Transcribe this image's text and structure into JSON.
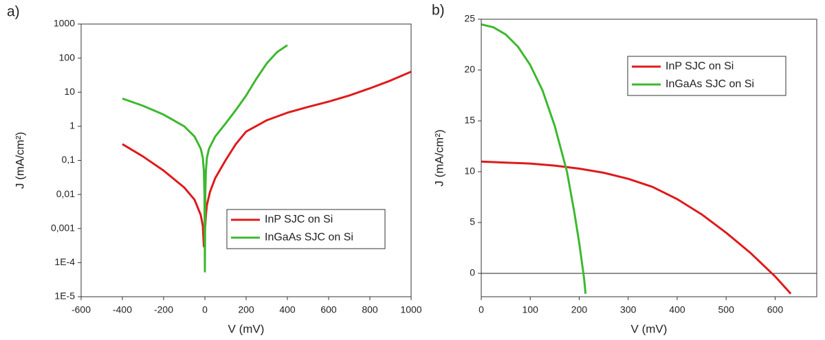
{
  "chart_data": [
    {
      "type": "line",
      "panel_label": "a)",
      "xlabel": "V (mV)",
      "ylabel": "J (mA/cm²)",
      "yscale": "log",
      "legend": "lower right",
      "xlim": [
        -600,
        1000
      ],
      "xticks": [
        -600,
        -400,
        -200,
        0,
        200,
        400,
        600,
        800,
        1000
      ],
      "ylim": [
        1e-05,
        1000
      ],
      "yticks": [
        {
          "value": 1e-05,
          "label": "1E-5"
        },
        {
          "value": 0.0001,
          "label": "1E-4"
        },
        {
          "value": 0.001,
          "label": "0,001"
        },
        {
          "value": 0.01,
          "label": "0,01"
        },
        {
          "value": 0.1,
          "label": "0,1"
        },
        1,
        10,
        100,
        1000
      ],
      "series": [
        {
          "name": "InP SJC on Si",
          "color": "#e0191b",
          "x": [
            -400,
            -300,
            -200,
            -100,
            -50,
            -20,
            -10,
            -5,
            0,
            5,
            10,
            25,
            50,
            100,
            150,
            200,
            300,
            400,
            500,
            600,
            700,
            800,
            900,
            1000
          ],
          "values": [
            0.3,
            0.13,
            0.05,
            0.016,
            0.007,
            0.0025,
            0.0012,
            0.0003,
            0.0008,
            0.0025,
            0.005,
            0.012,
            0.03,
            0.1,
            0.3,
            0.7,
            1.5,
            2.5,
            3.7,
            5.3,
            8,
            13,
            22,
            40
          ]
        },
        {
          "name": "InGaAs SJC on Si",
          "color": "#3cb82e",
          "x": [
            -400,
            -300,
            -200,
            -100,
            -50,
            -20,
            -10,
            -5,
            -2,
            0,
            2,
            5,
            10,
            20,
            50,
            100,
            150,
            200,
            250,
            300,
            350,
            400
          ],
          "values": [
            6.5,
            4,
            2.2,
            1,
            0.5,
            0.22,
            0.12,
            0.05,
            0.01,
            5.5e-05,
            0.01,
            0.05,
            0.12,
            0.22,
            0.5,
            1.2,
            3,
            8,
            25,
            70,
            150,
            240
          ]
        }
      ]
    },
    {
      "type": "line",
      "panel_label": "b)",
      "xlabel": "V (mV)",
      "ylabel": "J (mA/cm²)",
      "yscale": "linear",
      "legend": "upper right",
      "zero_line": true,
      "xlim": [
        0,
        685
      ],
      "xticks": [
        0,
        100,
        200,
        300,
        400,
        500,
        600
      ],
      "ylim": [
        -2.3,
        25
      ],
      "yticks": [
        0,
        5,
        10,
        15,
        20,
        25
      ],
      "series": [
        {
          "name": "InP SJC on Si",
          "color": "#e0191b",
          "x": [
            0,
            50,
            100,
            150,
            200,
            250,
            300,
            350,
            400,
            450,
            500,
            550,
            600,
            632
          ],
          "values": [
            11,
            10.9,
            10.8,
            10.6,
            10.3,
            9.9,
            9.3,
            8.5,
            7.3,
            5.8,
            4,
            2,
            -0.3,
            -2
          ]
        },
        {
          "name": "InGaAs SJC on Si",
          "color": "#3cb82e",
          "x": [
            0,
            25,
            50,
            75,
            100,
            125,
            150,
            175,
            190,
            200,
            210,
            213
          ],
          "values": [
            24.5,
            24.2,
            23.5,
            22.3,
            20.5,
            18,
            14.5,
            10,
            6,
            3,
            -0.5,
            -2
          ]
        }
      ]
    }
  ]
}
